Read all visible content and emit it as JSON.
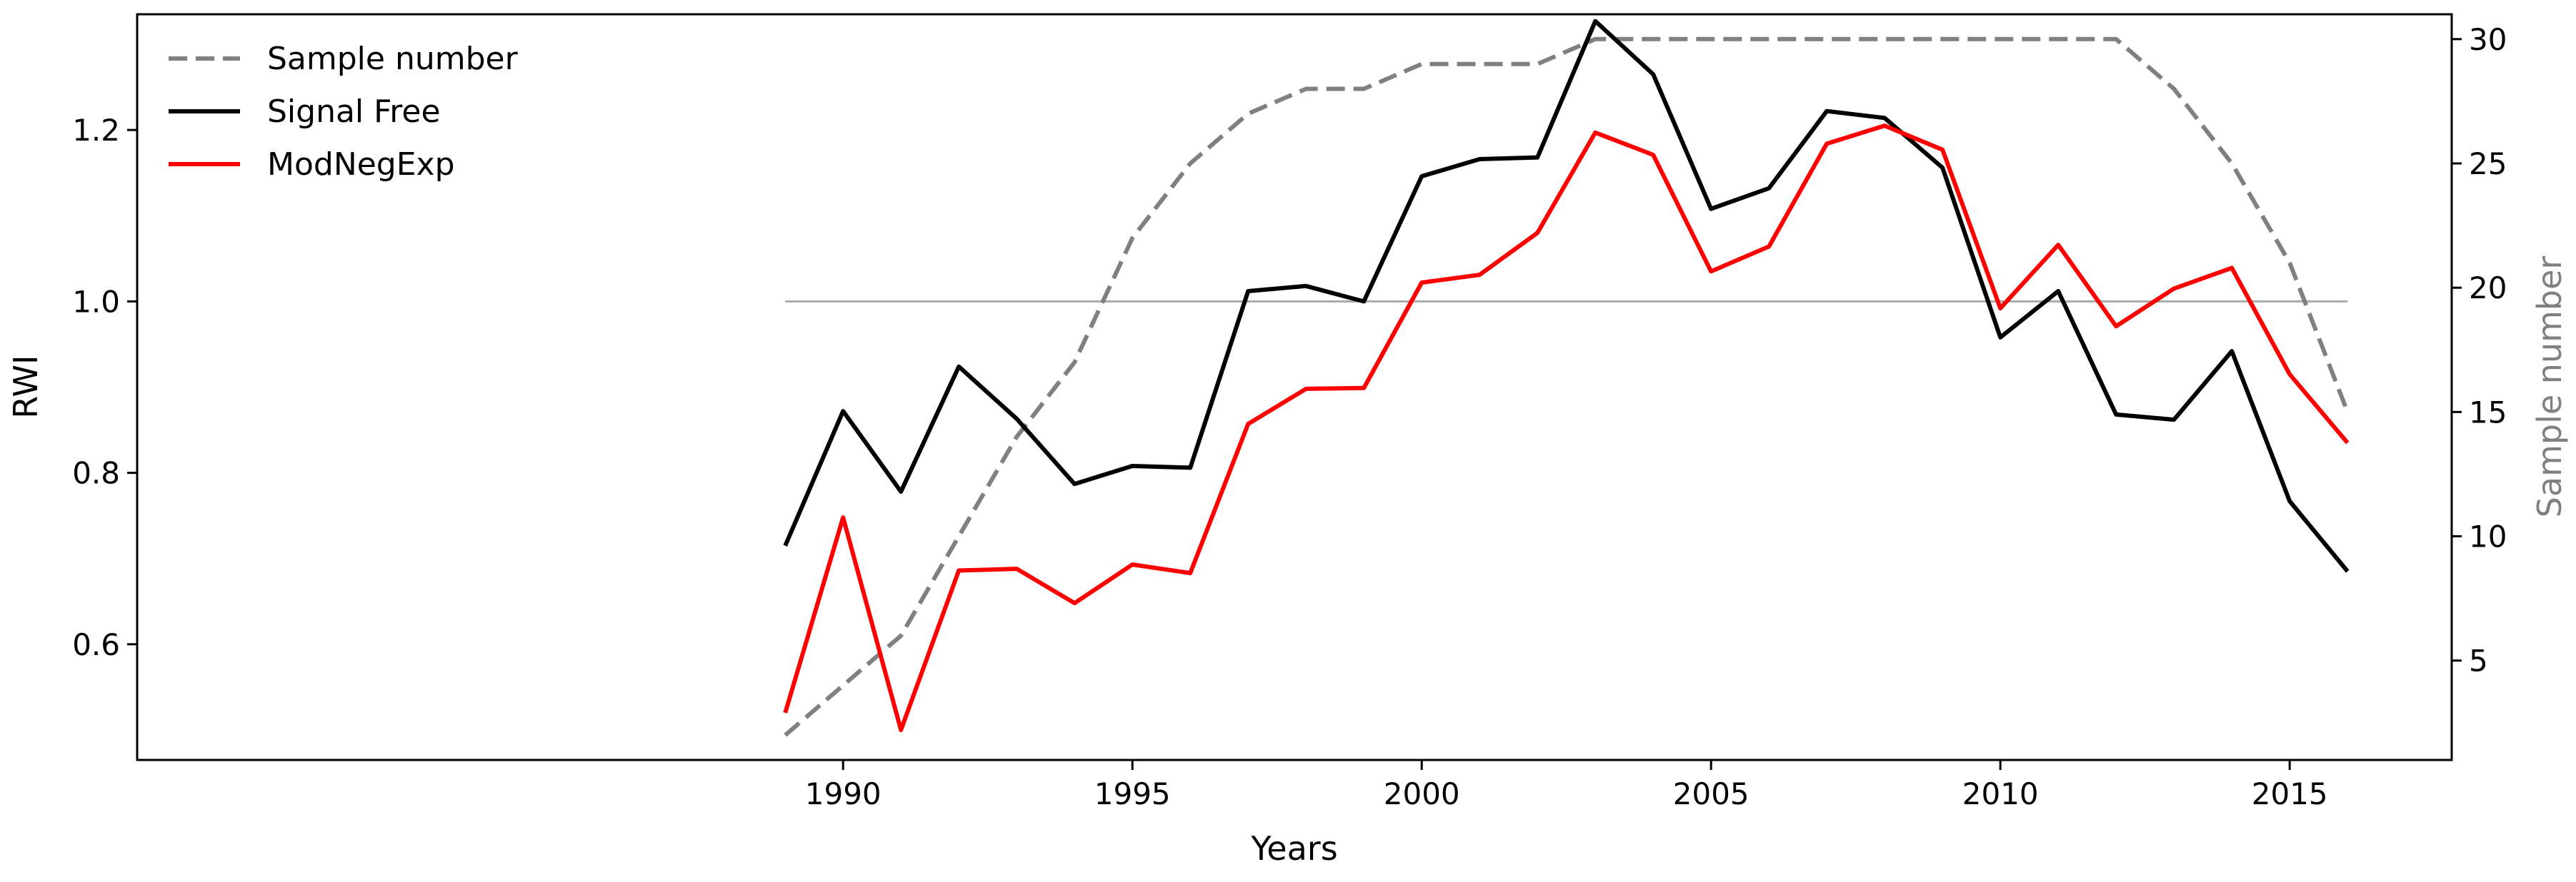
{
  "chart_data": {
    "type": "line",
    "xlabel": "Years",
    "ylabel_left": "RWI",
    "ylabel_right": "Sample number",
    "x": [
      1989,
      1990,
      1991,
      1992,
      1993,
      1994,
      1995,
      1996,
      1997,
      1998,
      1999,
      2000,
      2001,
      2002,
      2003,
      2004,
      2005,
      2006,
      2007,
      2008,
      2009,
      2010,
      2011,
      2012,
      2013,
      2014,
      2015,
      2016
    ],
    "xlim": [
      1977.8,
      2017.8
    ],
    "xticks": [
      "1990",
      "1995",
      "2000",
      "2005",
      "2010",
      "2015"
    ],
    "ylim_left": [
      0.465,
      1.335
    ],
    "yticks_left": [
      "0.6",
      "0.8",
      "1.0",
      "1.2"
    ],
    "ylim_right": [
      1,
      31
    ],
    "yticks_right": [
      "5",
      "10",
      "15",
      "20",
      "25",
      "30"
    ],
    "reference_line": {
      "y": 1.0,
      "color": "#aaaaaa"
    },
    "series": [
      {
        "name": "Sample number",
        "axis": "right",
        "color": "#808080",
        "dashed": true,
        "values": [
          2,
          4,
          6,
          10,
          14,
          17,
          22,
          25,
          27,
          28,
          28,
          29,
          29,
          29,
          30,
          30,
          30,
          30,
          30,
          30,
          30,
          30,
          30,
          30,
          28,
          25,
          21,
          15
        ]
      },
      {
        "name": "Signal Free",
        "axis": "left",
        "color": "#000000",
        "dashed": false,
        "values": [
          0.715,
          0.872,
          0.778,
          0.924,
          0.863,
          0.787,
          0.808,
          0.806,
          1.012,
          1.018,
          1.0,
          1.146,
          1.166,
          1.168,
          1.327,
          1.265,
          1.108,
          1.132,
          1.222,
          1.214,
          1.156,
          0.958,
          1.012,
          0.868,
          0.862,
          0.942,
          0.767,
          0.685
        ]
      },
      {
        "name": "ModNegExp",
        "axis": "left",
        "color": "#ff0000",
        "dashed": false,
        "values": [
          0.52,
          0.748,
          0.5,
          0.686,
          0.688,
          0.648,
          0.693,
          0.683,
          0.857,
          0.898,
          0.899,
          1.022,
          1.031,
          1.08,
          1.197,
          1.171,
          1.035,
          1.064,
          1.184,
          1.205,
          1.177,
          0.992,
          1.066,
          0.971,
          1.015,
          1.039,
          0.915,
          0.835
        ]
      }
    ],
    "legend_position": "top-left",
    "grid": false
  }
}
